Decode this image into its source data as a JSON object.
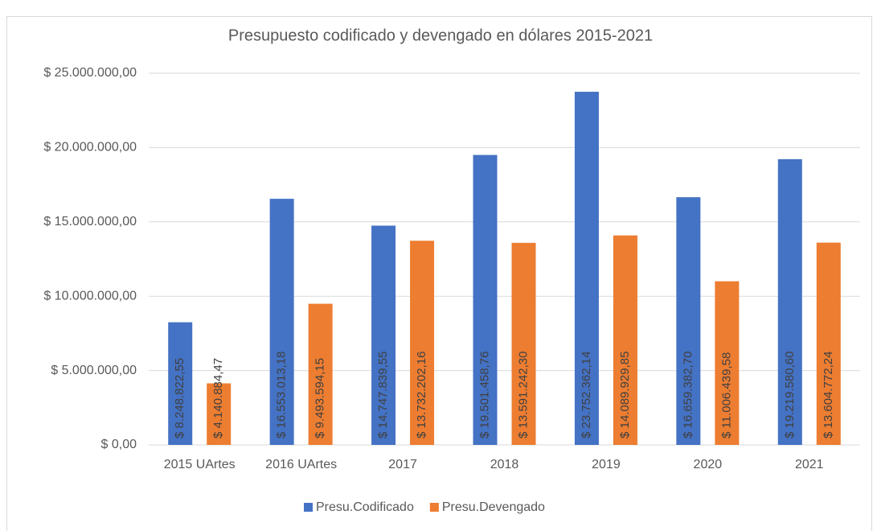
{
  "chart_data": {
    "type": "bar",
    "title": "Presupuesto codificado y devengado en dólares 2015-2021",
    "categories": [
      "2015 UArtes",
      "2016 UArtes",
      "2017",
      "2018",
      "2019",
      "2020",
      "2021"
    ],
    "series": [
      {
        "name": "Presu.Codificado",
        "color": "#4472c4",
        "values": [
          8248822.55,
          16553013.18,
          14747839.55,
          19501458.76,
          23752362.14,
          16659382.7,
          19219580.6
        ],
        "value_labels": [
          "$ 8.248.822,55",
          "$ 16.553.013,18",
          "$ 14.747.839,55",
          "$ 19.501.458,76",
          "$ 23.752.362,14",
          "$ 16.659.382,70",
          "$ 19.219.580,60"
        ]
      },
      {
        "name": "Presu.Devengado",
        "color": "#ed7d31",
        "values": [
          4140884.47,
          9493594.15,
          13732202.16,
          13591242.3,
          14089929.85,
          11006439.58,
          13604772.24
        ],
        "value_labels": [
          "$ 4.140.884,47",
          "$ 9.493.594,15",
          "$ 13.732.202,16",
          "$ 13.591.242,30",
          "$ 14.089.929,85",
          "$ 11.006.439,58",
          "$ 13.604.772,24"
        ]
      }
    ],
    "ylim": [
      0,
      25000000
    ],
    "yticks": [
      {
        "value": 0,
        "label": "$ 0,00"
      },
      {
        "value": 5000000,
        "label": "$ 5.000.000,00"
      },
      {
        "value": 10000000,
        "label": "$ 10.000.000,00"
      },
      {
        "value": 15000000,
        "label": "$ 15.000.000,00"
      },
      {
        "value": 20000000,
        "label": "$ 20.000.000,00"
      },
      {
        "value": 25000000,
        "label": "$ 25.000.000,00"
      }
    ],
    "grid": true,
    "legend": "bottom"
  }
}
